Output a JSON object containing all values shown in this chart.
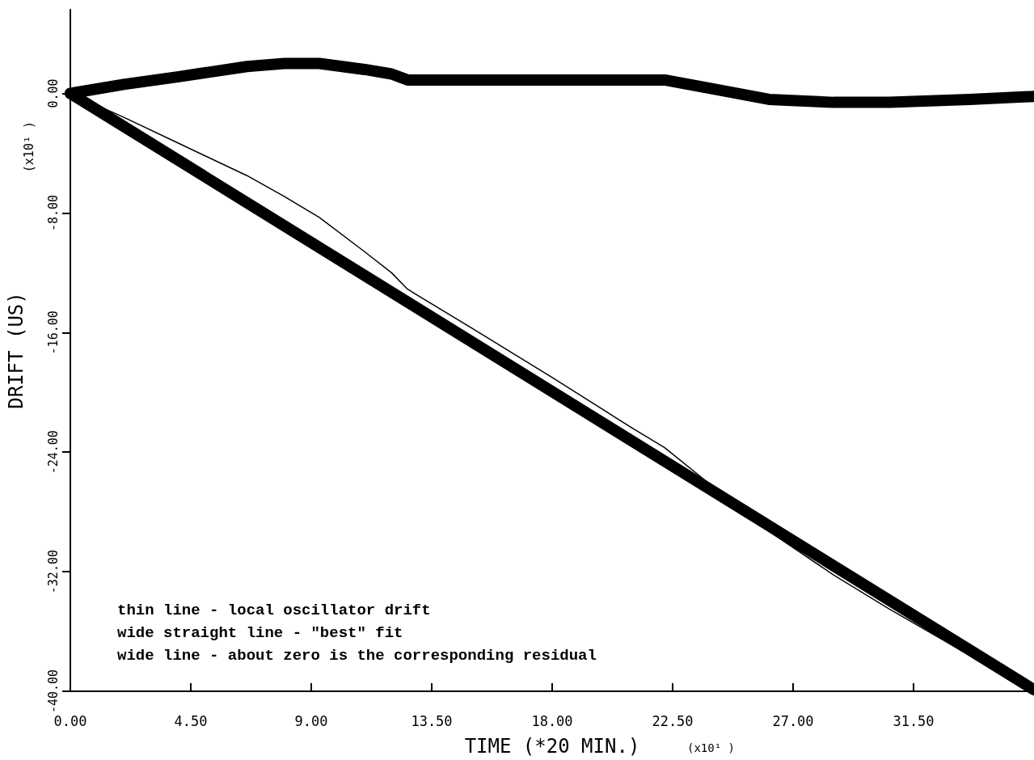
{
  "chart_data": {
    "type": "line",
    "xlabel": "TIME (*20 MIN.)",
    "ylabel": "DRIFT (US)",
    "annotations": [
      "(x10¹ )",
      "(x10¹ )",
      "thin line - local oscillator drift",
      "wide straight line - \"best\" fit",
      "wide line - about zero is the corresponding residual"
    ],
    "x": [
      0,
      2,
      4,
      6.6,
      8,
      9.3,
      11,
      12,
      12.6,
      15,
      18,
      21,
      22.2,
      24,
      26.1,
      28.5,
      30.6,
      33.6,
      36
    ],
    "series": [
      {
        "color": "#000000",
        "x": [
          0,
          36
        ],
        "values": [
          0,
          -39.9
        ]
      },
      {
        "color": "#000000",
        "values": [
          0,
          0.6,
          1.1,
          1.8,
          2.0,
          2.0,
          1.6,
          1.3,
          0.9,
          0.9,
          0.9,
          0.9,
          0.9,
          0.3,
          -0.4,
          -0.6,
          -0.6,
          -0.4,
          -0.2
        ]
      },
      {
        "color": "#000000",
        "values": [
          0,
          -1.6,
          -3.3,
          -5.5,
          -6.9,
          -8.3,
          -10.6,
          -12.0,
          -13.1,
          -15.7,
          -19.0,
          -22.4,
          -23.7,
          -26.3,
          -29.3,
          -32.2,
          -34.5,
          -37.6,
          -40.0
        ]
      }
    ],
    "xlim": [
      0,
      36
    ],
    "ylim": [
      -40,
      5.6
    ],
    "xticks": [
      {
        "value": 0,
        "label": "0.00"
      },
      {
        "value": 4.5,
        "label": "4.50"
      },
      {
        "value": 9,
        "label": "9.00"
      },
      {
        "value": 13.5,
        "label": "13.50"
      },
      {
        "value": 18,
        "label": "18.00"
      },
      {
        "value": 22.5,
        "label": "22.50"
      },
      {
        "value": 27,
        "label": "27.00"
      },
      {
        "value": 31.5,
        "label": "31.50"
      }
    ],
    "yticks": [
      {
        "value": 0,
        "label": "0.00"
      },
      {
        "value": -8,
        "label": "-8.00"
      },
      {
        "value": -16,
        "label": "-16.00"
      },
      {
        "value": -24,
        "label": "-24.00"
      },
      {
        "value": -32,
        "label": "-32.00"
      },
      {
        "value": -40,
        "label": "-40.00"
      }
    ],
    "grid": false,
    "marker": "none",
    "line_style": "solid"
  }
}
